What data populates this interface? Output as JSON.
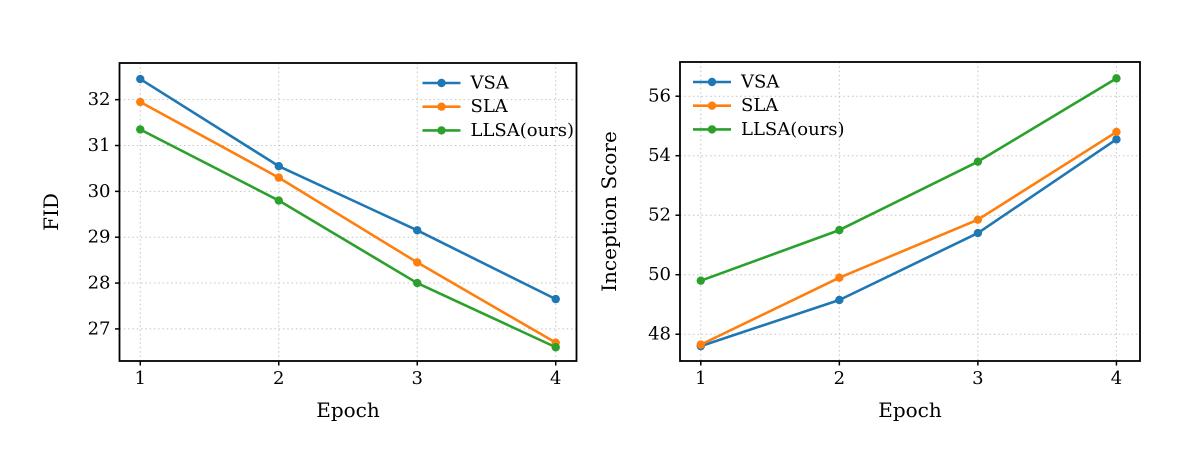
{
  "figure": {
    "background": "#ffffff",
    "series_colors": {
      "VSA": "#1f77b4",
      "SLA": "#ff7f0e",
      "LLSA(ours)": "#2ca02c"
    }
  },
  "chart_data": [
    {
      "type": "line",
      "title": "",
      "xlabel": "Epoch",
      "ylabel": "FID",
      "x": [
        1,
        2,
        3,
        4
      ],
      "series": [
        {
          "name": "VSA",
          "color": "#1f77b4",
          "values": [
            32.45,
            30.55,
            29.15,
            27.65
          ]
        },
        {
          "name": "SLA",
          "color": "#ff7f0e",
          "values": [
            31.95,
            30.3,
            28.45,
            26.7
          ]
        },
        {
          "name": "LLSA(ours)",
          "color": "#2ca02c",
          "values": [
            31.35,
            29.8,
            28.0,
            26.6
          ]
        }
      ],
      "xlim": [
        0.85,
        4.15
      ],
      "ylim": [
        26.3,
        32.8
      ],
      "xticks": [
        1,
        2,
        3,
        4
      ],
      "yticks": [
        27,
        28,
        29,
        30,
        31,
        32
      ],
      "grid": true,
      "grid_style": "dotted",
      "legend_position": "upper right",
      "legend_frame": false
    },
    {
      "type": "line",
      "title": "",
      "xlabel": "Epoch",
      "ylabel": "Inception Score",
      "x": [
        1,
        2,
        3,
        4
      ],
      "series": [
        {
          "name": "VSA",
          "color": "#1f77b4",
          "values": [
            47.6,
            49.15,
            51.4,
            54.55
          ]
        },
        {
          "name": "SLA",
          "color": "#ff7f0e",
          "values": [
            47.65,
            49.9,
            51.85,
            54.8
          ]
        },
        {
          "name": "LLSA(ours)",
          "color": "#2ca02c",
          "values": [
            49.8,
            51.5,
            53.8,
            56.6
          ]
        }
      ],
      "xlim": [
        0.85,
        4.17
      ],
      "ylim": [
        47.1,
        57.15
      ],
      "xticks": [
        1,
        2,
        3,
        4
      ],
      "yticks": [
        48,
        50,
        52,
        54,
        56
      ],
      "grid": true,
      "grid_style": "dotted",
      "legend_position": "upper left",
      "legend_frame": false
    }
  ]
}
